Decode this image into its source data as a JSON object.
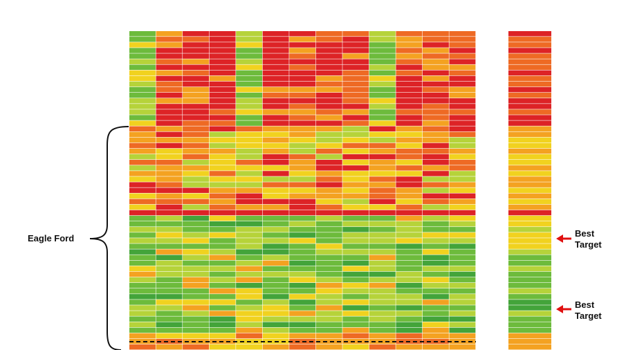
{
  "region_label": "Eagle Ford",
  "annotations": [
    "Best Target",
    "Best Target"
  ]
}
